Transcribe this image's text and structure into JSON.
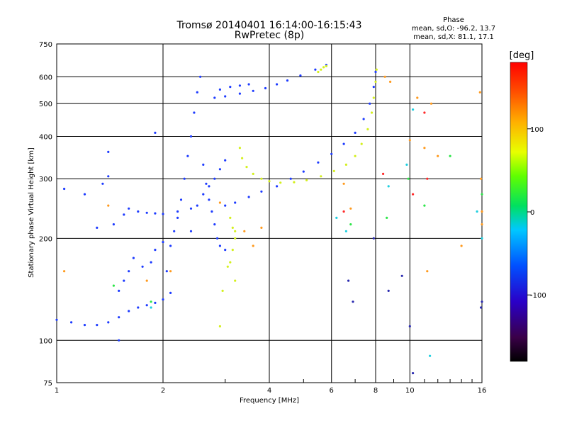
{
  "chart_data": {
    "type": "scatter",
    "title": "Tromsø 20140401 16:14:00-16:15:43",
    "subtitle": "RwPretec (8p)",
    "xlabel": "Frequency [MHz]",
    "ylabel": "Stationary phase Virtual Height [km]",
    "x_scale": "log",
    "y_scale": "log",
    "xlim": [
      1,
      16
    ],
    "ylim": [
      75,
      750
    ],
    "x_ticks": [
      1,
      2,
      4,
      6,
      8,
      10,
      16
    ],
    "y_ticks": [
      75,
      100,
      200,
      300,
      400,
      500,
      600,
      750
    ],
    "grid": true,
    "phase_stats": {
      "title": "Phase",
      "line_o": "mean, sd,O: -96.2, 13.7",
      "line_x": "mean, sd,X:  81.1, 17.1"
    },
    "colorbar": {
      "label": "[deg]",
      "ticks": [
        100,
        0,
        -100
      ],
      "range": [
        -180,
        180
      ]
    },
    "series": [
      {
        "mode": "O",
        "phase": -100,
        "color": "#1e3cff",
        "points": [
          [
            1.0,
            115
          ],
          [
            1.1,
            113
          ],
          [
            1.2,
            111
          ],
          [
            1.3,
            111
          ],
          [
            1.4,
            113
          ],
          [
            1.5,
            117
          ],
          [
            1.6,
            122
          ],
          [
            1.7,
            125
          ],
          [
            1.8,
            127
          ],
          [
            1.9,
            129
          ],
          [
            2.0,
            132
          ],
          [
            2.1,
            138
          ],
          [
            1.45,
            220
          ],
          [
            1.55,
            235
          ],
          [
            1.6,
            245
          ],
          [
            1.7,
            240
          ],
          [
            1.8,
            238
          ],
          [
            1.9,
            237
          ],
          [
            2.0,
            236
          ],
          [
            2.2,
            240
          ],
          [
            2.4,
            245
          ],
          [
            1.5,
            140
          ],
          [
            1.55,
            150
          ],
          [
            1.6,
            160
          ],
          [
            1.65,
            175
          ],
          [
            1.75,
            165
          ],
          [
            1.85,
            170
          ],
          [
            1.9,
            185
          ],
          [
            2.0,
            195
          ],
          [
            2.05,
            160
          ],
          [
            2.1,
            190
          ],
          [
            2.15,
            210
          ],
          [
            2.2,
            230
          ],
          [
            2.25,
            260
          ],
          [
            2.3,
            300
          ],
          [
            2.35,
            350
          ],
          [
            2.4,
            400
          ],
          [
            2.45,
            470
          ],
          [
            2.5,
            540
          ],
          [
            2.55,
            600
          ],
          [
            2.6,
            330
          ],
          [
            2.65,
            290
          ],
          [
            2.7,
            260
          ],
          [
            2.75,
            240
          ],
          [
            2.8,
            220
          ],
          [
            2.85,
            200
          ],
          [
            2.9,
            190
          ],
          [
            3.0,
            185
          ],
          [
            2.4,
            210
          ],
          [
            2.5,
            250
          ],
          [
            2.6,
            270
          ],
          [
            2.7,
            285
          ],
          [
            2.8,
            300
          ],
          [
            2.9,
            320
          ],
          [
            3.0,
            340
          ],
          [
            3.0,
            250
          ],
          [
            3.2,
            255
          ],
          [
            3.5,
            265
          ],
          [
            3.8,
            275
          ],
          [
            4.2,
            285
          ],
          [
            4.6,
            300
          ],
          [
            5.0,
            315
          ],
          [
            5.5,
            335
          ],
          [
            6.0,
            355
          ],
          [
            6.5,
            380
          ],
          [
            7.0,
            410
          ],
          [
            7.4,
            450
          ],
          [
            7.7,
            500
          ],
          [
            7.9,
            560
          ],
          [
            8.0,
            620
          ],
          [
            2.8,
            520
          ],
          [
            3.0,
            525
          ],
          [
            3.3,
            535
          ],
          [
            3.6,
            545
          ],
          [
            3.9,
            555
          ],
          [
            4.2,
            570
          ],
          [
            4.5,
            585
          ],
          [
            4.9,
            605
          ],
          [
            5.4,
            630
          ],
          [
            5.8,
            650
          ],
          [
            2.9,
            550
          ],
          [
            3.1,
            560
          ],
          [
            3.3,
            565
          ],
          [
            3.5,
            570
          ],
          [
            1.9,
            410
          ],
          [
            1.4,
            360
          ],
          [
            1.35,
            290
          ],
          [
            1.4,
            305
          ],
          [
            1.05,
            280
          ],
          [
            1.2,
            270
          ],
          [
            1.3,
            215
          ],
          [
            1.5,
            100
          ]
        ]
      },
      {
        "mode": "X",
        "phase": 80,
        "color": "#d4f01e",
        "points": [
          [
            3.3,
            370
          ],
          [
            3.35,
            345
          ],
          [
            3.45,
            325
          ],
          [
            3.6,
            310
          ],
          [
            3.8,
            300
          ],
          [
            4.0,
            295
          ],
          [
            4.3,
            292
          ],
          [
            4.7,
            293
          ],
          [
            5.1,
            297
          ],
          [
            5.6,
            305
          ],
          [
            6.1,
            316
          ],
          [
            6.6,
            330
          ],
          [
            7.0,
            350
          ],
          [
            7.3,
            380
          ],
          [
            7.6,
            420
          ],
          [
            7.8,
            470
          ],
          [
            7.9,
            520
          ],
          [
            8.0,
            580
          ],
          [
            8.05,
            630
          ],
          [
            3.1,
            230
          ],
          [
            3.15,
            215
          ],
          [
            3.2,
            200
          ],
          [
            3.15,
            185
          ],
          [
            3.1,
            170
          ],
          [
            3.05,
            165
          ],
          [
            3.2,
            210
          ],
          [
            5.5,
            620
          ],
          [
            5.6,
            630
          ],
          [
            5.7,
            640
          ],
          [
            5.8,
            645
          ],
          [
            2.9,
            110
          ],
          [
            2.95,
            140
          ],
          [
            3.2,
            150
          ]
        ]
      },
      {
        "mode": "scattered",
        "phase": 40,
        "color": "#ff9a1e",
        "points": [
          [
            1.05,
            160
          ],
          [
            1.4,
            250
          ],
          [
            1.8,
            150
          ],
          [
            2.1,
            160
          ],
          [
            3.4,
            210
          ],
          [
            3.6,
            190
          ],
          [
            3.8,
            215
          ],
          [
            6.5,
            290
          ],
          [
            6.8,
            245
          ],
          [
            8.5,
            600
          ],
          [
            8.8,
            580
          ],
          [
            10.0,
            390
          ],
          [
            10.5,
            520
          ],
          [
            11.0,
            370
          ],
          [
            11.2,
            160
          ],
          [
            11.5,
            500
          ],
          [
            12.0,
            350
          ],
          [
            14.0,
            190
          ],
          [
            15.8,
            540
          ],
          [
            15.9,
            300
          ],
          [
            16.0,
            240
          ],
          [
            16.0,
            220
          ],
          [
            2.9,
            255
          ]
        ]
      },
      {
        "mode": "scattered",
        "phase": -20,
        "color": "#1ecfe0",
        "points": [
          [
            1.85,
            125
          ],
          [
            6.2,
            230
          ],
          [
            6.6,
            210
          ],
          [
            8.7,
            285
          ],
          [
            9.8,
            330
          ],
          [
            10.2,
            480
          ],
          [
            11.4,
            90
          ],
          [
            15.5,
            240
          ],
          [
            16.0,
            200
          ]
        ]
      },
      {
        "mode": "scattered",
        "phase": 20,
        "color": "#2ee64a",
        "points": [
          [
            1.45,
            145
          ],
          [
            1.85,
            130
          ],
          [
            6.8,
            220
          ],
          [
            8.6,
            230
          ],
          [
            9.9,
            300
          ],
          [
            11.0,
            250
          ],
          [
            13.0,
            350
          ],
          [
            16.0,
            270
          ]
        ]
      },
      {
        "mode": "scattered",
        "phase": 150,
        "color": "#ff2a2a",
        "points": [
          [
            6.5,
            240
          ],
          [
            10.2,
            270
          ],
          [
            11.0,
            470
          ],
          [
            11.2,
            300
          ],
          [
            8.4,
            310
          ]
        ]
      },
      {
        "mode": "scattered",
        "phase": -130,
        "color": "#2a2ab0",
        "points": [
          [
            8.7,
            140
          ],
          [
            10.0,
            110
          ],
          [
            10.2,
            80
          ],
          [
            9.5,
            155
          ],
          [
            15.9,
            125
          ],
          [
            16.0,
            130
          ],
          [
            6.7,
            150
          ],
          [
            6.9,
            130
          ],
          [
            7.9,
            200
          ]
        ]
      }
    ]
  }
}
